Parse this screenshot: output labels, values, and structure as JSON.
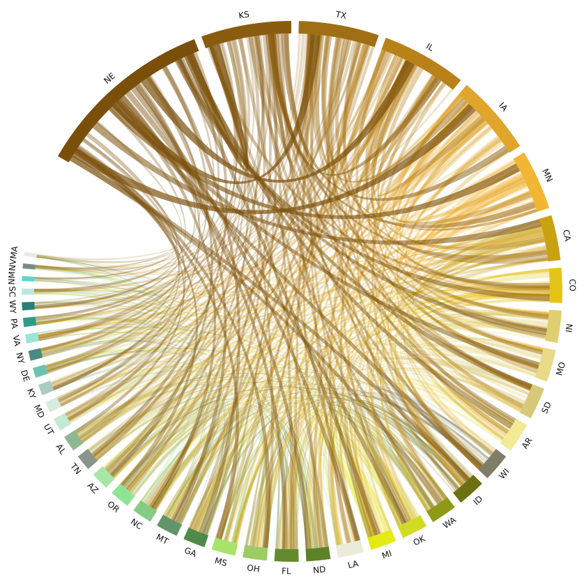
{
  "diagram": {
    "type": "chord",
    "nodes": [
      {
        "id": "NE",
        "color": "#7a4f0a",
        "weight": 18
      },
      {
        "id": "KS",
        "color": "#8a5c10",
        "weight": 9
      },
      {
        "id": "TX",
        "color": "#a06e14",
        "weight": 8
      },
      {
        "id": "IL",
        "color": "#b88218",
        "weight": 8.5
      },
      {
        "id": "IA",
        "color": "#e0a52a",
        "weight": 8
      },
      {
        "id": "MN",
        "color": "#f2b534",
        "weight": 6
      },
      {
        "id": "CA",
        "color": "#c9a212",
        "weight": 4.5
      },
      {
        "id": "CO",
        "color": "#e6c417",
        "weight": 3.5
      },
      {
        "id": "IN",
        "color": "#e0cf6e",
        "weight": 3.2
      },
      {
        "id": "MO",
        "color": "#e8da88",
        "weight": 3.2
      },
      {
        "id": "SD",
        "color": "#d6c97a",
        "weight": 3.2
      },
      {
        "id": "AR",
        "color": "#f3ea96",
        "weight": 3
      },
      {
        "id": "WI",
        "color": "#7e7e68",
        "weight": 2.8
      },
      {
        "id": "ID",
        "color": "#6b7012",
        "weight": 2.8
      },
      {
        "id": "WA",
        "color": "#8e9a16",
        "weight": 2.6
      },
      {
        "id": "OK",
        "color": "#d2da24",
        "weight": 2.6
      },
      {
        "id": "MI",
        "color": "#e6ea14",
        "weight": 2.6
      },
      {
        "id": "LA",
        "color": "#ebebd9",
        "weight": 2.6
      },
      {
        "id": "ND",
        "color": "#5e8228",
        "weight": 2.4
      },
      {
        "id": "FL",
        "color": "#628a2c",
        "weight": 2.4
      },
      {
        "id": "OH",
        "color": "#9ccc62",
        "weight": 2.4
      },
      {
        "id": "MS",
        "color": "#a8e36c",
        "weight": 2.4
      },
      {
        "id": "GA",
        "color": "#4e8a48",
        "weight": 2.2
      },
      {
        "id": "MT",
        "color": "#64946a",
        "weight": 2.2
      },
      {
        "id": "NC",
        "color": "#84cc84",
        "weight": 2
      },
      {
        "id": "OR",
        "color": "#8ee694",
        "weight": 2
      },
      {
        "id": "AZ",
        "color": "#a8e6a8",
        "weight": 1.8
      },
      {
        "id": "TN",
        "color": "#8a948c",
        "weight": 1.6
      },
      {
        "id": "AL",
        "color": "#90b890",
        "weight": 1.6
      },
      {
        "id": "UT",
        "color": "#c2ead0",
        "weight": 1.3
      },
      {
        "id": "MD",
        "color": "#d6ece0",
        "weight": 1.1
      },
      {
        "id": "KY",
        "color": "#a8ccc0",
        "weight": 1.1
      },
      {
        "id": "DE",
        "color": "#6cc2b0",
        "weight": 1
      },
      {
        "id": "NY",
        "color": "#4a8a80",
        "weight": 1
      },
      {
        "id": "VA",
        "color": "#9ae6d6",
        "weight": 0.9
      },
      {
        "id": "PA",
        "color": "#2f9a8c",
        "weight": 0.9
      },
      {
        "id": "WY",
        "color": "#2a7e78",
        "weight": 0.8
      },
      {
        "id": "SC",
        "color": "#bce6e0",
        "weight": 0.6
      },
      {
        "id": "NM",
        "color": "#5ad6ce",
        "weight": 0.5
      },
      {
        "id": "NV",
        "color": "#7a8a8a",
        "weight": 0.5
      },
      {
        "id": "MA",
        "color": "#e4ece8",
        "weight": 0.4
      }
    ]
  }
}
